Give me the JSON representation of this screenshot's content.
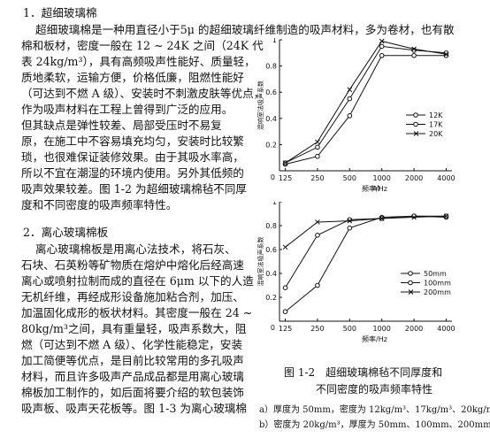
{
  "document": {
    "heading1": "1．超细玻璃棉",
    "section1_lines": [
      "超细玻璃棉是一种用直径小于5μ 的超细玻璃纤维制造的吸声材料，多为卷材，也有散",
      "棉和板材，密度一般在 12 ~ 24K 之间（24K 代",
      "表 24kg/m³），具有高频吸声性能好、质量轻，",
      "质地柔软，运输方便，价格低廉，阻燃性能好",
      "（可达到不燃 A 级）、安装时不刺激皮肤等优点，",
      "作为吸声材料在工程上曾得到广泛的应用。",
      "但其缺点是弹性较差、局部受压时不易复",
      "原，在施工中不容易填充均匀，安装时比较繁",
      "琐，也很难保证装修效果。由于其吸水率高，",
      "所以不宜在潮湿的环境内使用。另外其低频的",
      "吸声效果较差。图 1-2 为超细玻璃棉毡不同厚",
      "度和不同密度的吸声频率特性。"
    ],
    "heading2": "2．离心玻璃棉板",
    "section2_lines": [
      "离心玻璃棉板是用离心法技术，将石灰、",
      "石块、石英粉等矿物质在熔炉中熔化后经高速",
      "离心或喷射拉制而成的直径在 6μm 以下的人造",
      "无机纤维，再经成形设备施加粘合剂，加压、",
      "加温固化成形的板状材料。其密度一般在 24 ~",
      "80kg/m³之间，具有重量轻，吸声系数大，阻",
      "燃（可达到不燃 A 级）、化学性能稳定，安装",
      "加工简便等优点，是目前比较常用的多孔吸声",
      "材料，而且许多吸声产品成品都是用离心玻璃",
      "棉板加工制作的，如后面将要介绍的软包装饰",
      "吸声板、吸声天花板等。图 1-3 为离心玻璃棉"
    ],
    "figure_caption_line1": "图 1-2　超细玻璃棉毡不同厚度和",
    "figure_caption_line2": "不同密度的吸声频率特性",
    "figure_note_a": "a）厚度为 50mm，密度为 12kg/m³、17kg/m³、20kg/m³",
    "figure_note_b": "b）密度为 20kg/m³，厚度为 50mm、100mm、200mm"
  },
  "chart_data": [
    {
      "type": "line",
      "panel_label": "a)",
      "ylabel": "混响室法吸声系数",
      "xlabel": "频率/Hz",
      "x": [
        125,
        250,
        500,
        1000,
        2000,
        4000
      ],
      "x_scale": "log",
      "ylim": [
        0,
        1.0
      ],
      "y_ticks": [
        0,
        0.2,
        0.4,
        0.6,
        0.8,
        1.0
      ],
      "grid": false,
      "legend_position": "right-middle",
      "series": [
        {
          "name": "12K",
          "marker": "circle",
          "values": [
            0.05,
            0.11,
            0.42,
            0.88,
            0.88,
            0.88
          ]
        },
        {
          "name": "17K",
          "marker": "circle",
          "values": [
            0.06,
            0.18,
            0.55,
            0.95,
            0.92,
            0.9
          ]
        },
        {
          "name": "20K",
          "marker": "cross",
          "values": [
            0.06,
            0.22,
            0.62,
            0.99,
            0.93,
            0.89
          ]
        }
      ]
    },
    {
      "type": "line",
      "panel_label": "b)",
      "ylabel": "混响室法吸声系数",
      "xlabel": "频率/Hz",
      "x": [
        125,
        250,
        500,
        1000,
        2000,
        4000
      ],
      "x_scale": "log",
      "ylim": [
        0,
        1.0
      ],
      "y_ticks": [
        0,
        0.2,
        0.4,
        0.6,
        0.8,
        1.0
      ],
      "grid": false,
      "legend_position": "right-middle",
      "series": [
        {
          "name": "50mm",
          "marker": "circle",
          "values": [
            0.08,
            0.3,
            0.78,
            0.87,
            0.88,
            0.87
          ]
        },
        {
          "name": "100mm",
          "marker": "circle",
          "values": [
            0.28,
            0.72,
            0.85,
            0.86,
            0.88,
            0.88
          ]
        },
        {
          "name": "200mm",
          "marker": "cross",
          "values": [
            0.62,
            0.83,
            0.84,
            0.86,
            0.87,
            0.88
          ]
        }
      ]
    }
  ]
}
